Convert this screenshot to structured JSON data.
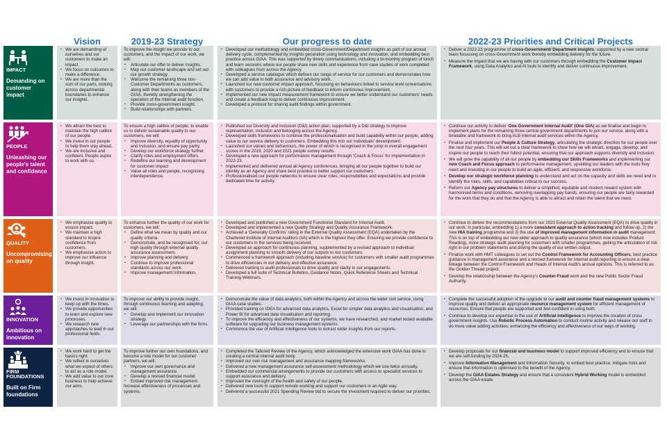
{
  "columns": [
    "Vision",
    "2019-23 Strategy",
    "Our progress to date",
    "2022-23 Priorities and Critical Projects"
  ],
  "rows": [
    {
      "id": "impact",
      "tag": "IMPACT",
      "subtitle": "Demanding on customer impact",
      "icon": "meeting-icon",
      "color": "#005e46",
      "bg": "#d6dfdc",
      "vision": [
        "We are demanding of ourselves and our customers to make an impact.",
        "We focus on outcomes to make a difference.",
        "We are more than the sum of our parts, looking across departmental boundaries to enhance our insights."
      ],
      "strategy": {
        "intro": "To improve the insight we provide to our customers, and the impact of our work, we will:",
        "items": [
          "Articulate our offer to deliver insights.",
          "Map our customer landscape and set out our growth strategy.",
          "Welcome the remaining three non-Customer Departments as customers, along with their teams as members of the GIAA, thereby strengthening the operation of the Internal audit function.",
          "Provide cross-government insight.",
          "Build relationships with partners."
        ],
        "outro": ""
      },
      "progress": [
        "Developed our methodology and embedded cross-Government/Department insights as part of our annual delivery cycle, complemented by Insights generation using technology and innovation; and embedding best practice across GIAA. This was supported by timely communications, including a bi-monthly program of lunch and learn sessions where our people share new skills and experience from case studies of work completed with colleagues from across the Agency.",
        "Developed a service catalogue which defines our range of service for our customers and demonstrates how we can add value in both assurance and advisory work.",
        "Launched our new customer impact approach, focussing on behaviours linked to service level conversations with customers to provide a rich picture of feedback to inform continuous improvement.",
        "Implemented our new impact measurement framework to ensure we better understand our customers' needs and create a feedback loop to deliver continuous improvement.",
        "Developed a protocol for sharing audit findings within government."
      ],
      "priorities": [
        [
          {
            "t": "Deliver a 2022-23 programme of "
          },
          {
            "t": "cross-Government/ Department insights",
            "b": true
          },
          {
            "t": ", supported by a new central team focussing on cross-Government work thereby embedding delivery for the future."
          }
        ],
        [
          {
            "t": "Measure the impact that we are having with our customers through embedding the "
          },
          {
            "t": "Customer Impact Framework",
            "b": true
          },
          {
            "t": ", using Data Analytics and AI tools to identify and deliver continuous improvement."
          }
        ]
      ]
    },
    {
      "id": "people",
      "tag": "PEOPLE",
      "subtitle": "Unleashing our people's talent and confidence",
      "icon": "people-growth-icon",
      "color": "#b0167e",
      "bg": "#f8dbe9",
      "vision": [
        "We attract the best to maintain the high calibre of our people.",
        "We invest in our people to help them stay ahead.",
        "We are inclusive and confident.  People aspire to work with us."
      ],
      "strategy": {
        "intro": "To ensure a high calibre of people, to enable us to deliver sustainable quality to our customers, we will:",
        "items": [
          "Improve diversity, equality of opportunity and inclusion, and ensure pay parity.",
          "Develop our workforce strategy further.",
          "Clarify roles and employment offers.",
          "Redefine our learning and development for customer impact",
          "Value all roles and people, recognising interdependence."
        ],
        "outro": ""
      },
      "progress": [
        "Published our Diversity and Inclusion (D&I) action plan, supported by a D&I strategy to improve representation, inclusion and belonging across the Agency.",
        "Developed skills frameworks to continue the professionalisation and build capability within our people, adding value to our service delivery to customers. Embedding this into our individuals' development.",
        "Launched our values and behaviours, the power of which is recognised in the jump in overall engagement scores in the 2019, 2020 and 2021 people survey results.",
        "Developed a new approach for performance management through 'Coach & Focus' for implementation in 2022-23.",
        "Implemented and delivered annual all Agency conferences, bringing all our people together to build our identity as an Agency and share best practice to better support our customers.",
        "Professionalised our people networks to ensure clear roles, responsibilities and expectations and provide dedicated time for activity."
      ],
      "priorities": [
        [
          {
            "t": "Continue our activity to deliver '"
          },
          {
            "t": "One Government Internal Audit' (One GIA)",
            "b": true
          },
          {
            "t": " as we finalise and begin to implement plans for the remaining three central government departments to join our service, along with a timetable and framework to bring ALB internal audit services within the Agency."
          }
        ],
        [
          {
            "t": "Finalise and implement our "
          },
          {
            "t": "People & Culture Strategy",
            "b": true
          },
          {
            "t": ", articulating the strategic direction for our people over the next four years. This will set out a clear framework to show how we will attract, engage, develop, and inspire our people to reach their fullest potential, ensuring that our approach supports diversity and inclusion."
          }
        ],
        [
          {
            "t": "We will grow the capability of all our people by "
          },
          {
            "t": "embedding our Skills Frameworks",
            "b": true
          },
          {
            "t": " and implementing our "
          },
          {
            "t": "new Coach and Focus approach",
            "b": true
          },
          {
            "t": " to performance management, upskilling our leaders with the tools they need and investing in our people to build an agile, efficient, and responsive workforce."
          }
        ],
        [
          {
            "t": "Develop our strategic workforce planning",
            "b": true
          },
          {
            "t": " to understand and act on the capacity and skills we need and to identify the roles, skills, and capabilities critical to our success."
          }
        ],
        [
          {
            "t": "Reform our "
          },
          {
            "t": "Agency pay structures",
            "b": true
          },
          {
            "t": " to deliver a simplified, equitable and modern reward system with harmonised terms and conditions, removing overlapping pay bands, ensuring our people are fairly rewarded for the work that they do and that the Agency is able to attract and retain the talent that we need."
          }
        ]
      ]
    },
    {
      "id": "quality",
      "tag": "QUALITY",
      "subtitle": "Uncompromising on quality",
      "icon": "quality-search-icon",
      "color": "#e05f17",
      "bg": "#f3dfdf",
      "vision": [
        "We emphasise quality to ensure impact.",
        "We maintain a high standard to inspire confidence from customers.",
        "We emphasise action to improve our influence through insight."
      ],
      "strategy": {
        "intro": "To enhance further the quality of our work for customers, we will:",
        "items": [
          "Define what we mean by quality and our quality criteria.",
          "Demonstrate, and be recognised for, our high quality through external quality assurance assessment.",
          "Improve planning and delivery.",
          "Continue to improve professional standards across our work.",
          "Improve management Information."
        ],
        "outro": ""
      },
      "progress": [
        "Developed and published a new Government Functional Standard for Internal Audit.",
        "Developed and implemented a new Quality Strategy and Quality Assurance Framework.",
        "Achieved a 'Generally Confirms' rating in the External Quality Assessment (EQA) undertaken by the Chartered Institute of internal Auditors (IIA) which is the highest they offer. Ensuring we provide confidence to our customers in the services being received.",
        "Developed an approach for continuous planning, supplemented by a revised approach to individual assignment planning to smooth delivery of our outputs to our customers.",
        "Commenced a framework approach (including baseline service) for customers with smaller audit programmes to drive efficiencies in our delivery and effective assurance.",
        "Delivered training to audit professionals to drive quality and clarity in our engagements.",
        "Developed a full suite of Technical Bulletins, Guidance Notes, Quick Reference Sheets and Technical Training Webinars."
      ],
      "priorities": [
        [
          {
            "t": "Continue to deliver the recommendations from our 2020 External Quality Assessment (EQA) to drive quality in our work. In particular, embedding 1) a more "
          },
          {
            "t": "consistent approach to action tracking",
            "b": true
          },
          {
            "t": " and follow-up, 2) the new "
          },
          {
            "t": "HIA training",
            "b": true
          },
          {
            "t": " programme and 3) the use "
          },
          {
            "t": "of improved management information in audit",
            "b": true
          },
          {
            "t": " management. This is on top of embedding our new wider approach to quality assurance (which now includes Product Reading), more strategic audit planning for customers with smaller programmes, getting the articulation of risk right in our problem statements and driving the quality of our written output."
          }
        ],
        [
          {
            "t": "Finalise work with HMT colleagues to set out the "
          },
          {
            "t": "Control Framework for Accounting Officers",
            "b": true
          },
          {
            "t": ", best practice guidance in management assurance and a revised framework for internal audit reporting to ensure a clear linkage between the Control Framework and Heads of Internal Audit's annual opinions. This is referred to as the Golden Thread project."
          }
        ],
        [
          {
            "t": "Develop the relationship between the Agency's "
          },
          {
            "t": "Counter-Fraud",
            "b": true
          },
          {
            "t": " work and the new Public Sector Fraud Authority."
          }
        ]
      ]
    },
    {
      "id": "innovation",
      "tag": "INNOVATION",
      "subtitle": "Ambitious on innovation",
      "icon": "idea-team-icon",
      "color": "#6b1f9b",
      "bg": "#dddbe8",
      "vision": [
        "We invest in innovation to keep up with the times.",
        "We provide opportunities to learn and explore new processes.",
        "We research new approaches to lead in our professional fields."
      ],
      "strategy": {
        "intro": "To improve our ability to provide insight, through continuous learning and adapting, we will:",
        "items": [
          "Develop and implement our innovation strategy.",
          "Leverage our partnerships with the firms."
        ],
        "outro": ""
      },
      "progress": [
        "Demonstrate the value of data analytics, both within the Agency and across the wider civil service, using GIAA case studies.",
        "Provided training on IDEA for advanced data analytics, Excel for simpler data analytics and visualisation, and Power BI for advanced data visualisation and reporting.",
        "To improve the efficiency and effectiveness of our systems, we have researched, and market tested available software for upgrading our business management systems.",
        "Commence the use of Artificial Intelligence tools to extract wider insights from our reports."
      ],
      "priorities": [
        [
          {
            "t": "Complete the successful adoption of the upgrade to our "
          },
          {
            "t": "audit and counter fraud management systems",
            "b": true
          },
          {
            "t": " to improve quality and deliver an appropriate "
          },
          {
            "t": "resource management system",
            "b": true
          },
          {
            "t": " for efficient management of resources. Ensure that people are supported and feel confident in using both."
          }
        ],
        [
          {
            "t": "Continue to develop our expertise in the use of "
          },
          {
            "t": "Artificial Intelligence",
            "b": true
          },
          {
            "t": " to improve the creation of cross government insights. Use "
          },
          {
            "t": "Robotic Process Automation",
            "b": true
          },
          {
            "t": " to conduct routine activity and release our staff to do more value adding activities, enhancing the efficiency and effectiveness of our ways of working."
          }
        ]
      ]
    },
    {
      "id": "firm",
      "tag": "FIRM FOUNDATIONS",
      "subtitle": "Built on Firm foundations",
      "icon": "podium-icon",
      "color": "#0f2445",
      "bg": "#dcdcdc",
      "vision": [
        "We work hard to get the basics right.",
        "We reflect in ourselves what we expect of others to act as a role model.",
        "We add value to our core business to help achieve our aims."
      ],
      "strategy": {
        "intro": "To improve further our own foundations, and become a role model for our customer partners, we will:",
        "items": [
          "Improve our own governance and management assurance.",
          "Develop a revised financial model.",
          "Embed improved risk management."
        ],
        "outro": "Increase effectiveness of processes and systems."
      },
      "progress": [
        "Completed the Tailored Review of the Agency, which acknowledged the extensive work GIAA has done in creating a central internal audit body.",
        "Improved our own risk management and assurance mapping frameworks.",
        "Delivered a new management assurance self-assessment methodology which we use twice annually.",
        "Embedded our commercial arrangements to provide our customers with access to specialist services to support assurance and delivery.",
        "Improved the oversight of the health and safety of our people.",
        "Delivered new tools to support remote working and support our customers in an Agile way.",
        "Delivered a successful 2021 Spending Review bid to secure the investment required to deliver our priorities."
      ],
      "priorities": [
        [
          {
            "t": "Develop proposals for our "
          },
          {
            "t": "financial and business model",
            "b": true
          },
          {
            "t": " to support improved efficiency and to ensure that we are self-funding by 2024-25."
          }
        ],
        [
          {
            "t": "Improve "
          },
          {
            "t": "Information Management",
            "b": true
          },
          {
            "t": " and Information Security, to embed best practice, mitigate risks and ensure that information is optimised to the benefit of the Agency."
          }
        ],
        [
          {
            "t": "Develop the "
          },
          {
            "t": "GIAA Estates Strategy",
            "b": true
          },
          {
            "t": " and ensure that a consistent "
          },
          {
            "t": "Hybrid Working",
            "b": true
          },
          {
            "t": " model is embedded across the GIAA estate."
          }
        ]
      ]
    }
  ]
}
